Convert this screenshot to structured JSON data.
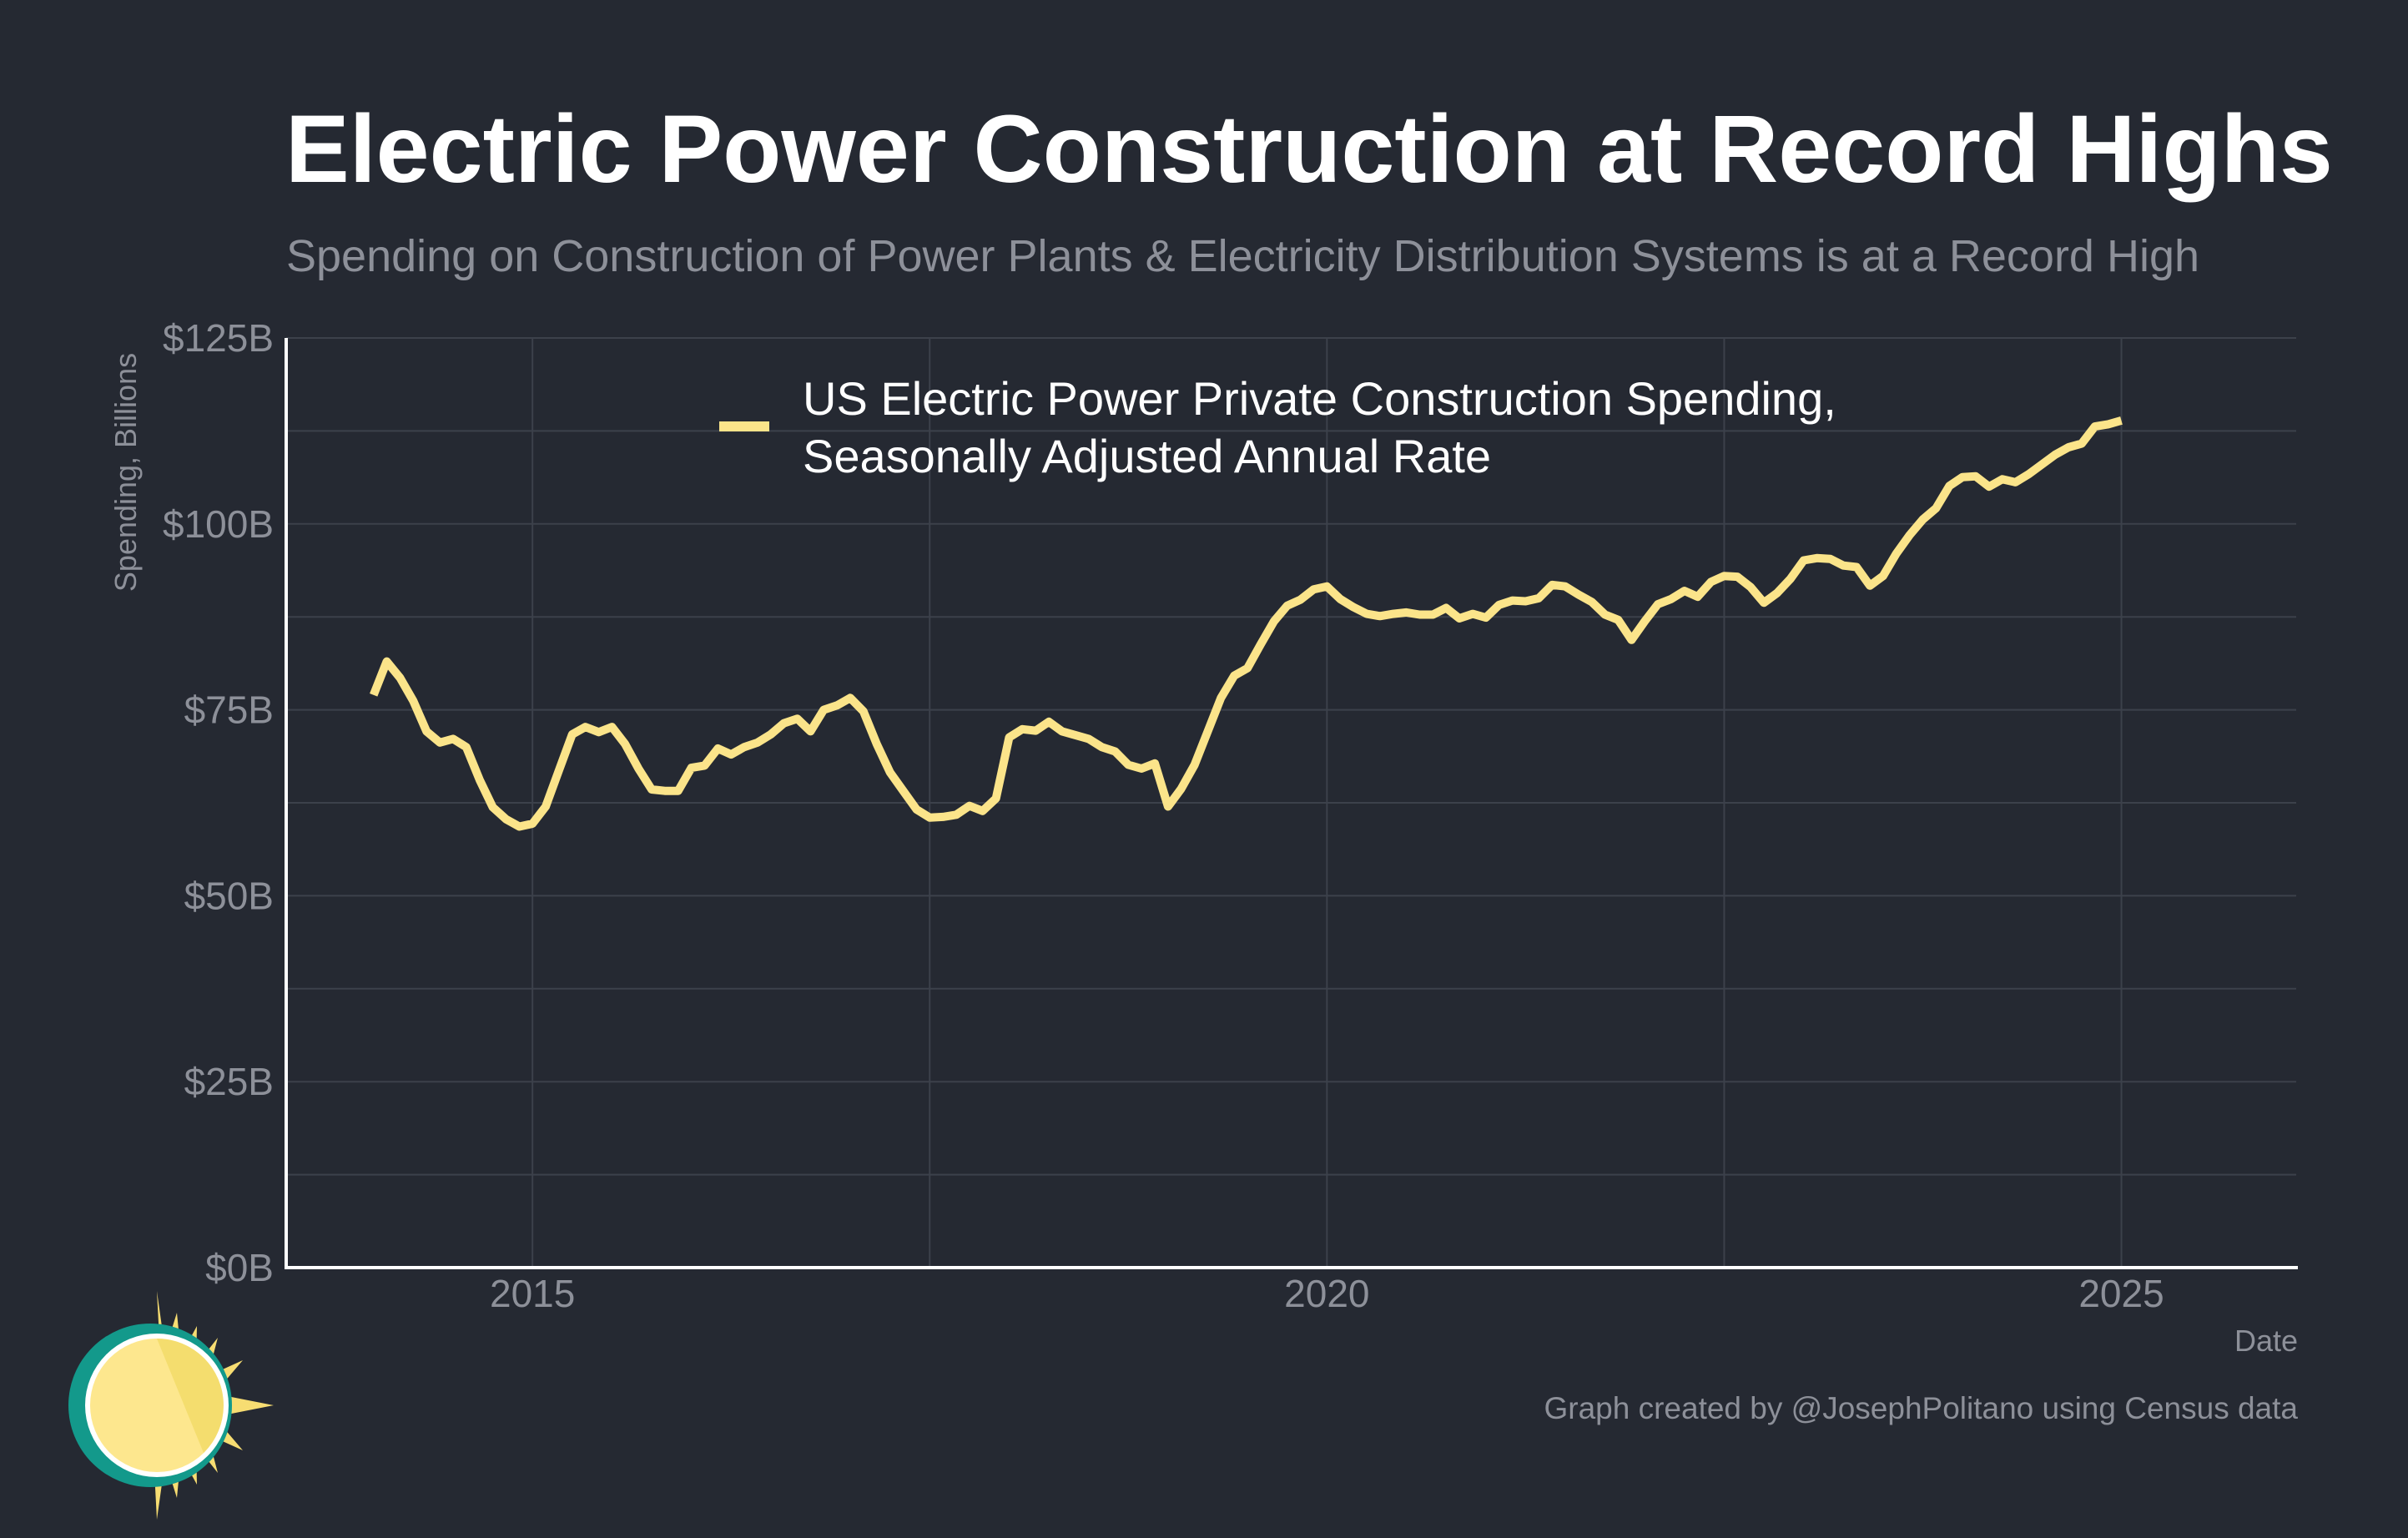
{
  "title": "Electric Power Construction at Record Highs",
  "subtitle": "Spending on Construction of Power Plants & Electricity Distribution Systems is at a Record High",
  "caption": "Graph created by @JosephPolitano using Census data",
  "colors": {
    "background": "#252932",
    "series": "#fbe48a",
    "grid": "#3c414b",
    "axis": "#ffffff",
    "muted_text": "#8d9099",
    "logo_teal": "#13998b",
    "logo_sun": "#f7dd72",
    "logo_sun_light": "#fde78e"
  },
  "logo": {
    "icon": "sun-icon"
  },
  "chart_data": {
    "type": "line",
    "title": "Electric Power Construction at Record Highs",
    "subtitle": "Spending on Construction of Power Plants & Electricity Distribution Systems is at a Record High",
    "xlabel": "Date",
    "ylabel": "Spending, Billions",
    "xlim": [
      2013.45,
      2026.1
    ],
    "ylim": [
      0,
      125
    ],
    "x_ticks": [
      2015,
      2020,
      2025
    ],
    "x_tick_labels": [
      "2015",
      "2020",
      "2025"
    ],
    "y_ticks": [
      0,
      25,
      50,
      75,
      100,
      125
    ],
    "y_tick_labels": [
      "$0B",
      "$25B",
      "$50B",
      "$75B",
      "$100B",
      "$125B"
    ],
    "grid": true,
    "legend_position": "top-center",
    "series": [
      {
        "name": "US Electric Power Private Construction Spending, Seasonally Adjusted Annual Rate",
        "legend_lines": [
          "US Electric Power Private Construction Spending,",
          "Seasonally Adjusted Annual Rate"
        ],
        "color": "#fbe48a",
        "x": [
          2014.0,
          2014.083,
          2014.167,
          2014.25,
          2014.333,
          2014.417,
          2014.5,
          2014.583,
          2014.667,
          2014.75,
          2014.833,
          2014.917,
          2015.0,
          2015.083,
          2015.167,
          2015.25,
          2015.333,
          2015.417,
          2015.5,
          2015.583,
          2015.667,
          2015.75,
          2015.833,
          2015.917,
          2016.0,
          2016.083,
          2016.167,
          2016.25,
          2016.333,
          2016.417,
          2016.5,
          2016.583,
          2016.667,
          2016.75,
          2016.833,
          2016.917,
          2017.0,
          2017.083,
          2017.167,
          2017.25,
          2017.333,
          2017.417,
          2017.5,
          2017.583,
          2017.667,
          2017.75,
          2017.833,
          2017.917,
          2018.0,
          2018.083,
          2018.167,
          2018.25,
          2018.333,
          2018.417,
          2018.5,
          2018.583,
          2018.667,
          2018.75,
          2018.833,
          2018.917,
          2019.0,
          2019.083,
          2019.167,
          2019.25,
          2019.333,
          2019.417,
          2019.5,
          2019.583,
          2019.667,
          2019.75,
          2019.833,
          2019.917,
          2020.0,
          2020.083,
          2020.167,
          2020.25,
          2020.333,
          2020.417,
          2020.5,
          2020.583,
          2020.667,
          2020.75,
          2020.833,
          2020.917,
          2021.0,
          2021.083,
          2021.167,
          2021.25,
          2021.333,
          2021.417,
          2021.5,
          2021.583,
          2021.667,
          2021.75,
          2021.833,
          2021.917,
          2022.0,
          2022.083,
          2022.167,
          2022.25,
          2022.333,
          2022.417,
          2022.5,
          2022.583,
          2022.667,
          2022.75,
          2022.833,
          2022.917,
          2023.0,
          2023.083,
          2023.167,
          2023.25,
          2023.333,
          2023.417,
          2023.5,
          2023.583,
          2023.667,
          2023.75,
          2023.833,
          2023.917,
          2024.0,
          2024.083,
          2024.167,
          2024.25,
          2024.333,
          2024.417,
          2024.5,
          2024.583,
          2024.667,
          2024.75,
          2024.833,
          2024.917,
          2025.0
        ],
        "values": [
          77.0,
          81.5,
          79.3,
          76.2,
          72.1,
          70.6,
          71.1,
          70.0,
          65.6,
          61.9,
          60.3,
          59.3,
          59.7,
          62.0,
          66.9,
          71.7,
          72.7,
          72.0,
          72.7,
          70.4,
          67.1,
          64.3,
          64.1,
          64.1,
          67.2,
          67.5,
          69.8,
          69.0,
          70.0,
          70.6,
          71.7,
          73.2,
          73.8,
          72.1,
          75.0,
          75.6,
          76.6,
          74.8,
          70.4,
          66.6,
          64.1,
          61.6,
          60.5,
          60.6,
          60.9,
          62.1,
          61.4,
          63.1,
          71.3,
          72.4,
          72.2,
          73.4,
          72.1,
          71.6,
          71.1,
          70.0,
          69.4,
          67.6,
          67.1,
          67.8,
          62.0,
          64.4,
          67.6,
          72.1,
          76.6,
          79.6,
          80.6,
          83.8,
          86.9,
          89.0,
          89.8,
          91.2,
          91.6,
          89.9,
          88.8,
          87.9,
          87.6,
          87.9,
          88.1,
          87.8,
          87.8,
          88.7,
          87.3,
          87.9,
          87.4,
          89.1,
          89.7,
          89.6,
          90.0,
          91.8,
          91.6,
          90.5,
          89.5,
          87.8,
          87.1,
          84.4,
          86.9,
          89.2,
          89.9,
          91.0,
          90.2,
          92.2,
          93.0,
          92.9,
          91.5,
          89.4,
          90.7,
          92.6,
          95.1,
          95.4,
          95.3,
          94.4,
          94.2,
          91.7,
          93.0,
          96.0,
          98.5,
          100.6,
          102.1,
          105.1,
          106.3,
          106.4,
          105.0,
          106.0,
          105.6,
          106.7,
          108.0,
          109.3,
          110.3,
          110.8,
          113.1,
          113.4,
          113.9
        ]
      }
    ]
  }
}
